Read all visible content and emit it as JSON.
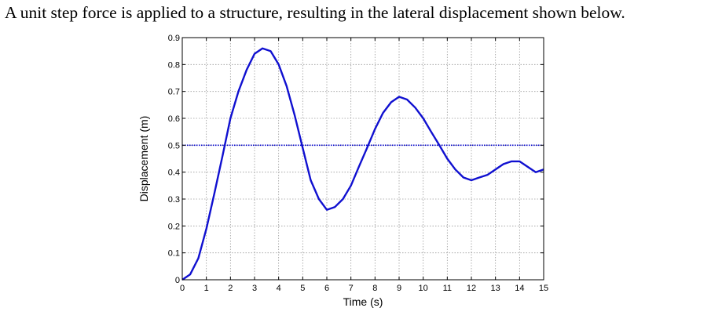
{
  "caption": "A unit step force is applied to a structure, resulting in the lateral displacement shown below.",
  "chart_data": {
    "type": "line",
    "title": "",
    "xlabel": "Time (s)",
    "ylabel": "Displacement (m)",
    "xlim": [
      0,
      15
    ],
    "ylim": [
      0,
      0.9
    ],
    "xticks": [
      0,
      1,
      2,
      3,
      4,
      5,
      6,
      7,
      8,
      9,
      10,
      11,
      12,
      13,
      14,
      15
    ],
    "yticks": [
      0,
      0.1,
      0.2,
      0.3,
      0.4,
      0.5,
      0.6,
      0.7,
      0.8,
      0.9
    ],
    "xtick_labels": [
      "0",
      "1",
      "2",
      "3",
      "4",
      "5",
      "6",
      "7",
      "8",
      "9",
      "10",
      "11",
      "12",
      "13",
      "14",
      "15"
    ],
    "ytick_labels": [
      "0",
      "0.1",
      "0.2",
      "0.3",
      "0.4",
      "0.5",
      "0.6",
      "0.7",
      "0.8",
      "0.9"
    ],
    "grid": true,
    "reference_line": {
      "y": 0.5,
      "color": "#0000cc",
      "style": "dotted"
    },
    "series": [
      {
        "color": "#1010d0",
        "x": [
          0,
          0.33,
          0.67,
          1.0,
          1.33,
          1.67,
          2.0,
          2.33,
          2.67,
          3.0,
          3.33,
          3.67,
          4.0,
          4.33,
          4.67,
          5.0,
          5.33,
          5.67,
          6.0,
          6.33,
          6.67,
          7.0,
          7.33,
          7.67,
          8.0,
          8.33,
          8.67,
          9.0,
          9.33,
          9.67,
          10.0,
          10.33,
          10.67,
          11.0,
          11.33,
          11.67,
          12.0,
          12.33,
          12.67,
          13.0,
          13.33,
          13.67,
          14.0,
          14.33,
          14.67,
          15.0
        ],
        "y": [
          0,
          0.02,
          0.08,
          0.19,
          0.32,
          0.46,
          0.6,
          0.7,
          0.78,
          0.84,
          0.86,
          0.85,
          0.8,
          0.72,
          0.61,
          0.49,
          0.37,
          0.3,
          0.26,
          0.27,
          0.3,
          0.35,
          0.42,
          0.49,
          0.56,
          0.62,
          0.66,
          0.68,
          0.67,
          0.64,
          0.6,
          0.55,
          0.5,
          0.45,
          0.41,
          0.38,
          0.37,
          0.38,
          0.39,
          0.41,
          0.43,
          0.44,
          0.44,
          0.42,
          0.4,
          0.41
        ]
      }
    ]
  }
}
